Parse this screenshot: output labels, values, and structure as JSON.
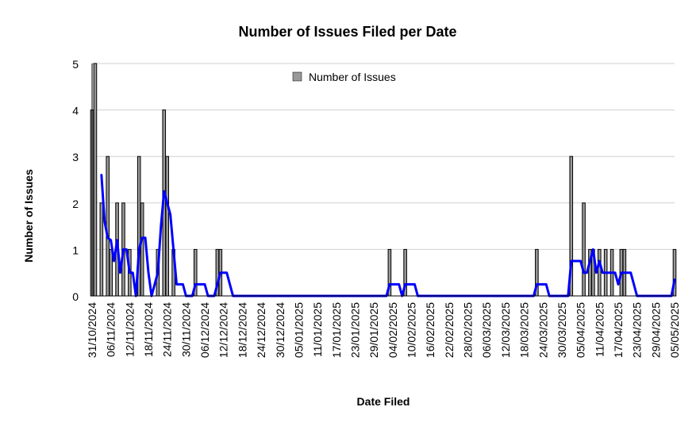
{
  "chart_data": {
    "type": "bar",
    "title": "Number of Issues Filed per Date",
    "xlabel": "Date Filed",
    "ylabel": "Number of Issues",
    "ylim": [
      0,
      5
    ],
    "yticks": [
      "0",
      "1",
      "2",
      "3",
      "4",
      "5"
    ],
    "grid": true,
    "legend_position": "top-center",
    "x_range": [
      "31/10/2024",
      "05/05/2025"
    ],
    "xtick_labels": [
      "31/10/2024",
      "06/11/2024",
      "12/11/2024",
      "18/11/2024",
      "24/11/2024",
      "30/11/2024",
      "06/12/2024",
      "12/12/2024",
      "18/12/2024",
      "24/12/2024",
      "30/12/2024",
      "05/01/2025",
      "11/01/2025",
      "17/01/2025",
      "23/01/2025",
      "29/01/2025",
      "04/02/2025",
      "10/02/2025",
      "16/02/2025",
      "22/02/2025",
      "28/02/2025",
      "06/03/2025",
      "12/03/2025",
      "18/03/2025",
      "24/03/2025",
      "30/03/2025",
      "05/04/2025",
      "11/04/2025",
      "17/04/2025",
      "23/04/2025",
      "29/04/2025",
      "05/05/2025"
    ],
    "bars": {
      "name": "Number of Issues",
      "color": "#999999",
      "points": [
        {
          "x": "31/10/2024",
          "y": 4
        },
        {
          "x": "01/11/2024",
          "y": 5
        },
        {
          "x": "03/11/2024",
          "y": 2
        },
        {
          "x": "05/11/2024",
          "y": 3
        },
        {
          "x": "06/11/2024",
          "y": 1
        },
        {
          "x": "08/11/2024",
          "y": 2
        },
        {
          "x": "10/11/2024",
          "y": 2
        },
        {
          "x": "12/11/2024",
          "y": 1
        },
        {
          "x": "15/11/2024",
          "y": 3
        },
        {
          "x": "16/11/2024",
          "y": 2
        },
        {
          "x": "21/11/2024",
          "y": 1
        },
        {
          "x": "23/11/2024",
          "y": 4
        },
        {
          "x": "24/11/2024",
          "y": 3
        },
        {
          "x": "26/11/2024",
          "y": 1
        },
        {
          "x": "03/12/2024",
          "y": 1
        },
        {
          "x": "10/12/2024",
          "y": 1
        },
        {
          "x": "11/12/2024",
          "y": 1
        },
        {
          "x": "03/02/2025",
          "y": 1
        },
        {
          "x": "08/02/2025",
          "y": 1
        },
        {
          "x": "22/03/2025",
          "y": 1
        },
        {
          "x": "02/04/2025",
          "y": 3
        },
        {
          "x": "06/04/2025",
          "y": 2
        },
        {
          "x": "08/04/2025",
          "y": 1
        },
        {
          "x": "09/04/2025",
          "y": 1
        },
        {
          "x": "11/04/2025",
          "y": 1
        },
        {
          "x": "13/04/2025",
          "y": 1
        },
        {
          "x": "15/04/2025",
          "y": 1
        },
        {
          "x": "18/04/2025",
          "y": 1
        },
        {
          "x": "19/04/2025",
          "y": 1
        },
        {
          "x": "05/05/2025",
          "y": 1
        }
      ]
    },
    "trend_line": {
      "type": "line",
      "color": "#0000ff",
      "points": [
        {
          "x": "03/11/2024",
          "y": 2.6
        },
        {
          "x": "04/11/2024",
          "y": 1.6
        },
        {
          "x": "05/11/2024",
          "y": 1.25
        },
        {
          "x": "06/11/2024",
          "y": 1.2
        },
        {
          "x": "07/11/2024",
          "y": 0.75
        },
        {
          "x": "08/11/2024",
          "y": 1.2
        },
        {
          "x": "09/11/2024",
          "y": 0.5
        },
        {
          "x": "10/11/2024",
          "y": 1.0
        },
        {
          "x": "11/11/2024",
          "y": 1.0
        },
        {
          "x": "12/11/2024",
          "y": 0.5
        },
        {
          "x": "13/11/2024",
          "y": 0.5
        },
        {
          "x": "14/11/2024",
          "y": 0.0
        },
        {
          "x": "15/11/2024",
          "y": 1.0
        },
        {
          "x": "16/11/2024",
          "y": 1.25
        },
        {
          "x": "17/11/2024",
          "y": 1.25
        },
        {
          "x": "18/11/2024",
          "y": 0.5
        },
        {
          "x": "19/11/2024",
          "y": 0.0
        },
        {
          "x": "20/11/2024",
          "y": 0.25
        },
        {
          "x": "21/11/2024",
          "y": 0.5
        },
        {
          "x": "22/11/2024",
          "y": 1.5
        },
        {
          "x": "23/11/2024",
          "y": 2.25
        },
        {
          "x": "24/11/2024",
          "y": 2.0
        },
        {
          "x": "25/11/2024",
          "y": 1.75
        },
        {
          "x": "26/11/2024",
          "y": 1.0
        },
        {
          "x": "27/11/2024",
          "y": 0.25
        },
        {
          "x": "28/11/2024",
          "y": 0.25
        },
        {
          "x": "29/11/2024",
          "y": 0.25
        },
        {
          "x": "30/11/2024",
          "y": 0.0
        },
        {
          "x": "02/12/2024",
          "y": 0.0
        },
        {
          "x": "03/12/2024",
          "y": 0.25
        },
        {
          "x": "06/12/2024",
          "y": 0.25
        },
        {
          "x": "07/12/2024",
          "y": 0.0
        },
        {
          "x": "09/12/2024",
          "y": 0.0
        },
        {
          "x": "10/12/2024",
          "y": 0.25
        },
        {
          "x": "11/12/2024",
          "y": 0.5
        },
        {
          "x": "13/12/2024",
          "y": 0.5
        },
        {
          "x": "15/12/2024",
          "y": 0.0
        },
        {
          "x": "02/02/2025",
          "y": 0.0
        },
        {
          "x": "03/02/2025",
          "y": 0.25
        },
        {
          "x": "06/02/2025",
          "y": 0.25
        },
        {
          "x": "07/02/2025",
          "y": 0.0
        },
        {
          "x": "08/02/2025",
          "y": 0.25
        },
        {
          "x": "11/02/2025",
          "y": 0.25
        },
        {
          "x": "12/02/2025",
          "y": 0.0
        },
        {
          "x": "21/03/2025",
          "y": 0.0
        },
        {
          "x": "22/03/2025",
          "y": 0.25
        },
        {
          "x": "25/03/2025",
          "y": 0.25
        },
        {
          "x": "26/03/2025",
          "y": 0.0
        },
        {
          "x": "01/04/2025",
          "y": 0.0
        },
        {
          "x": "02/04/2025",
          "y": 0.75
        },
        {
          "x": "05/04/2025",
          "y": 0.75
        },
        {
          "x": "06/04/2025",
          "y": 0.5
        },
        {
          "x": "07/04/2025",
          "y": 0.5
        },
        {
          "x": "08/04/2025",
          "y": 0.75
        },
        {
          "x": "09/04/2025",
          "y": 1.0
        },
        {
          "x": "10/04/2025",
          "y": 0.5
        },
        {
          "x": "11/04/2025",
          "y": 0.75
        },
        {
          "x": "12/04/2025",
          "y": 0.5
        },
        {
          "x": "15/04/2025",
          "y": 0.5
        },
        {
          "x": "16/04/2025",
          "y": 0.5
        },
        {
          "x": "17/04/2025",
          "y": 0.25
        },
        {
          "x": "18/04/2025",
          "y": 0.5
        },
        {
          "x": "21/04/2025",
          "y": 0.5
        },
        {
          "x": "22/04/2025",
          "y": 0.25
        },
        {
          "x": "23/04/2025",
          "y": 0.0
        },
        {
          "x": "04/05/2025",
          "y": 0.0
        },
        {
          "x": "05/05/2025",
          "y": 0.35
        }
      ]
    }
  }
}
